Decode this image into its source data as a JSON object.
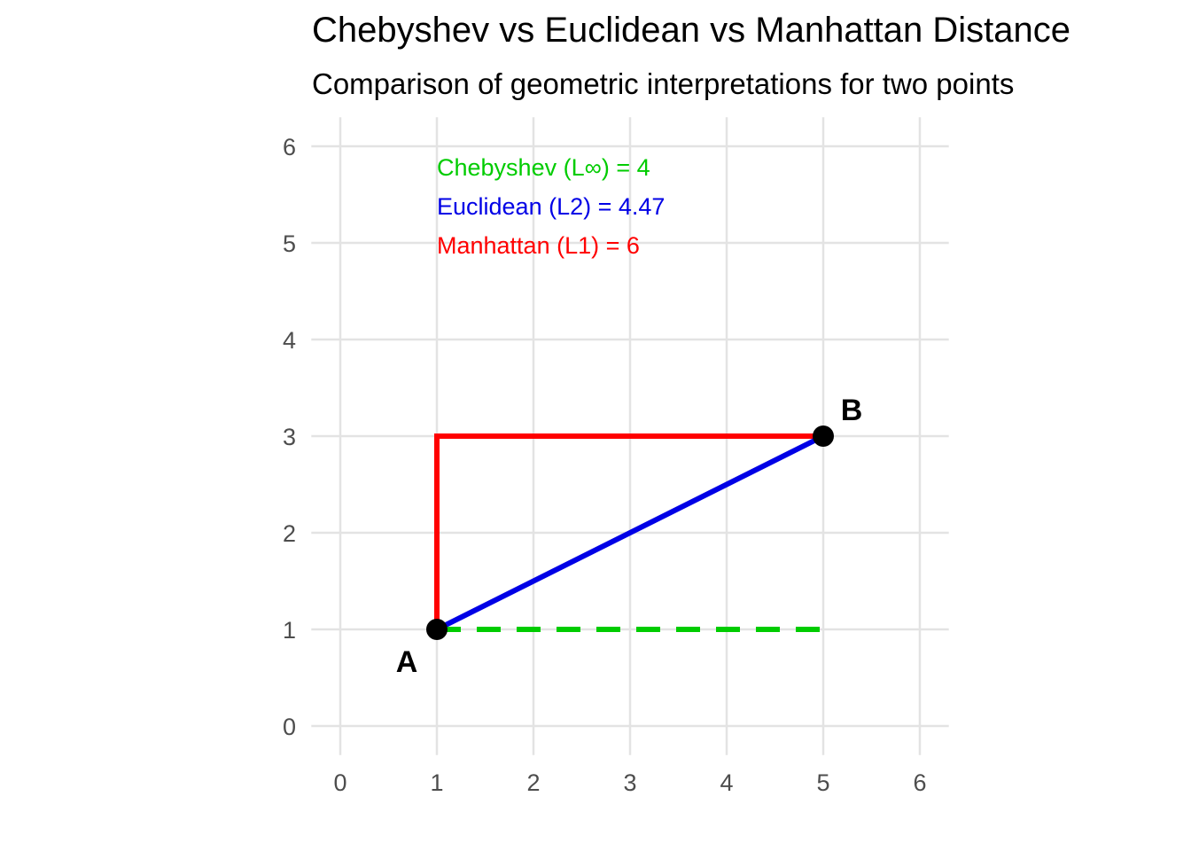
{
  "chart_data": {
    "type": "line",
    "title": "Chebyshev vs Euclidean vs Manhattan Distance",
    "subtitle": "Comparison of geometric interpretations for two points",
    "xlabel": "",
    "ylabel": "",
    "xlim": [
      0,
      6
    ],
    "ylim": [
      0,
      6
    ],
    "x_ticks": [
      "0",
      "1",
      "2",
      "3",
      "4",
      "5",
      "6"
    ],
    "y_ticks": [
      "0",
      "1",
      "2",
      "3",
      "4",
      "5",
      "6"
    ],
    "grid": true,
    "points": [
      {
        "label": "A",
        "x": 1,
        "y": 1
      },
      {
        "label": "B",
        "x": 5,
        "y": 3
      }
    ],
    "series": [
      {
        "name": "Manhattan",
        "style": "solid",
        "color": "#ff0000",
        "x": [
          1,
          1,
          5
        ],
        "y": [
          1,
          3,
          3
        ]
      },
      {
        "name": "Euclidean",
        "style": "solid",
        "color": "#0000e6",
        "x": [
          1,
          5
        ],
        "y": [
          1,
          3
        ]
      },
      {
        "name": "Chebyshev",
        "style": "dashed",
        "color": "#00cc00",
        "x": [
          1,
          5
        ],
        "y": [
          1,
          1
        ]
      }
    ],
    "annotations": [
      {
        "text": "Chebyshev (L∞) = 4",
        "color": "#00cc00"
      },
      {
        "text": "Euclidean (L2) = 4.47",
        "color": "#0000e6"
      },
      {
        "text": "Manhattan (L1) = 6",
        "color": "#ff0000"
      }
    ]
  }
}
